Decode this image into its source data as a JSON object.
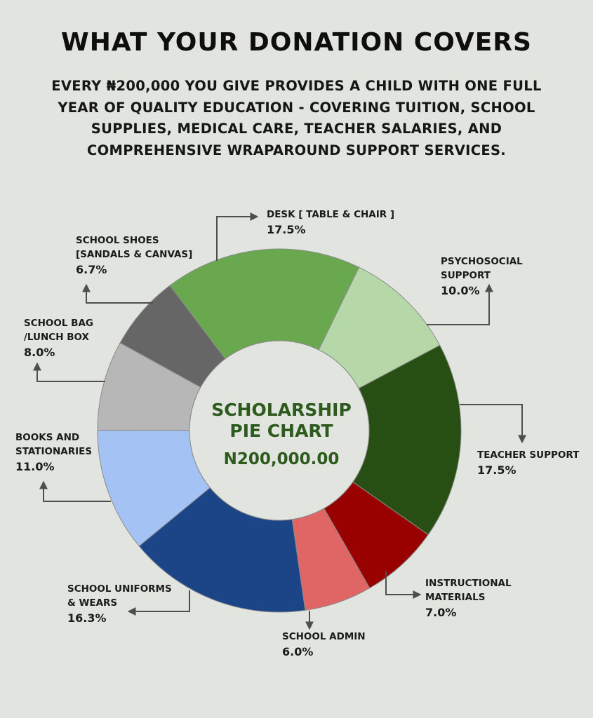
{
  "title": "WHAT YOUR DONATION COVERS",
  "subtitle": "EVERY ₦200,000 YOU GIVE PROVIDES A CHILD WITH ONE FULL YEAR OF QUALITY EDUCATION - COVERING TUITION, SCHOOL SUPPLIES, MEDICAL CARE, TEACHER SALARIES, AND COMPREHENSIVE WRAPAROUND SUPPORT SERVICES.",
  "center": {
    "title_line1": "SCHOLARSHIP",
    "title_line2": "PIE CHART",
    "amount": "N200,000.00"
  },
  "chart_data": {
    "type": "pie",
    "donut": true,
    "start_angle_deg": 0,
    "slices": [
      {
        "label_lines": [
          "PSYCHOSOCIAL",
          "SUPPORT"
        ],
        "value": 10.0,
        "display": "10.0%",
        "color": "#b6d7a8"
      },
      {
        "label_lines": [
          "TEACHER SUPPORT"
        ],
        "value": 17.5,
        "display": "17.5%",
        "color": "#274e13"
      },
      {
        "label_lines": [
          "INSTRUCTIONAL",
          "MATERIALS"
        ],
        "value": 7.0,
        "display": "7.0%",
        "color": "#990000"
      },
      {
        "label_lines": [
          "SCHOOL ADMIN"
        ],
        "value": 6.0,
        "display": "6.0%",
        "color": "#e06666"
      },
      {
        "label_lines": [
          "SCHOOL UNIFORMS",
          "& WEARS"
        ],
        "value": 16.3,
        "display": "16.3%",
        "color": "#1c4587"
      },
      {
        "label_lines": [
          "BOOKS AND",
          "STATIONARIES"
        ],
        "value": 11.0,
        "display": "11.0%",
        "color": "#a4c2f4"
      },
      {
        "label_lines": [
          "SCHOOL BAG",
          "/LUNCH BOX"
        ],
        "value": 8.0,
        "display": "8.0%",
        "color": "#b7b7b7"
      },
      {
        "label_lines": [
          "SCHOOL SHOES",
          "[SANDALS & CANVAS]"
        ],
        "value": 6.7,
        "display": "6.7%",
        "color": "#666666"
      },
      {
        "label_lines": [
          "DESK [ TABLE & CHAIR ]"
        ],
        "value": 17.5,
        "display": "17.5%",
        "color": "#6aa84f"
      }
    ]
  }
}
